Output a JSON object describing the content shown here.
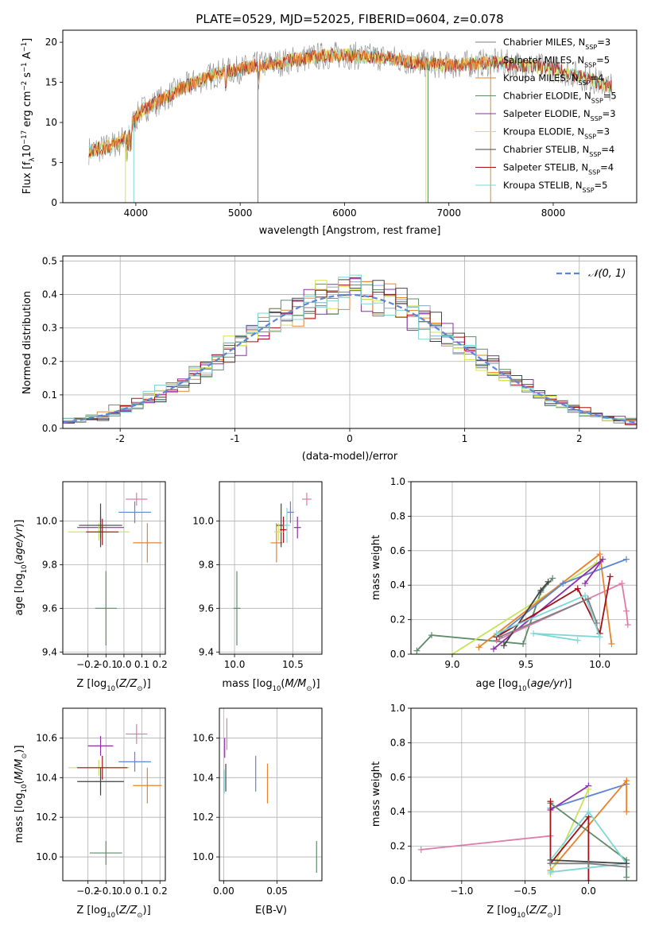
{
  "colors": {
    "ChabrierMILES": "#7f7f7f",
    "SalpeterMILES": "#8aa7c6",
    "KroupaMILES": "#e8822b",
    "ChabrierELODIE": "#5e8c6a",
    "SalpeterELODIE": "#8e2fa8",
    "KroupaELODIE": "#d6e34a",
    "ChabrierSTELIB": "#444444",
    "SalpeterSTELIB": "#a50f15",
    "KroupaSTELIB": "#7fd6d6",
    "Extra": "#5e86d6",
    "Pink": "#e07aa8",
    "Lime": "#c7e35a"
  },
  "chart_data": [
    {
      "id": "spectrum",
      "type": "line",
      "title": "PLATE=0529, MJD=52025, FIBERID=0604, z=0.078",
      "xlabel": "wavelength [Angstrom, rest frame]",
      "ylabel": "Flux [f_λ10^-17 erg cm^-2 s^-1 A^-1]",
      "xlim": [
        3300,
        8800
      ],
      "ylim": [
        0,
        21.5
      ],
      "xticks": [
        4000,
        5000,
        6000,
        7000,
        8000
      ],
      "yticks": [
        0,
        5,
        10,
        15,
        20
      ],
      "legend_position": "right",
      "legend": [
        {
          "label": "Chabrier MILES, N",
          "sub": "SSP",
          "eq": "=3",
          "color": "ChabrierMILES"
        },
        {
          "label": "Salpeter MILES, N",
          "sub": "SSP",
          "eq": "=5",
          "color": "SalpeterMILES"
        },
        {
          "label": "Kroupa MILES, N",
          "sub": "SSP",
          "eq": "=4",
          "color": "KroupaMILES"
        },
        {
          "label": "Chabrier ELODIE, N",
          "sub": "SSP",
          "eq": "=5",
          "color": "ChabrierELODIE"
        },
        {
          "label": "Salpeter ELODIE, N",
          "sub": "SSP",
          "eq": "=3",
          "color": "SalpeterELODIE"
        },
        {
          "label": "Kroupa ELODIE, N",
          "sub": "SSP",
          "eq": "=3",
          "color": "KroupaELODIE"
        },
        {
          "label": "Chabrier STELIB, N",
          "sub": "SSP",
          "eq": "=4",
          "color": "ChabrierSTELIB"
        },
        {
          "label": "Salpeter STELIB, N",
          "sub": "SSP",
          "eq": "=4",
          "color": "SalpeterSTELIB"
        },
        {
          "label": "Kroupa STELIB, N",
          "sub": "SSP",
          "eq": "=5",
          "color": "KroupaSTELIB"
        }
      ],
      "continuum": [
        [
          3550,
          6.5
        ],
        [
          3700,
          6.8
        ],
        [
          3850,
          7.5
        ],
        [
          3950,
          9.5
        ],
        [
          4050,
          11.5
        ],
        [
          4200,
          12.5
        ],
        [
          4400,
          14.0
        ],
        [
          4600,
          15.2
        ],
        [
          4800,
          16.2
        ],
        [
          5000,
          16.6
        ],
        [
          5200,
          17.2
        ],
        [
          5400,
          17.5
        ],
        [
          5600,
          18.0
        ],
        [
          5800,
          18.3
        ],
        [
          6000,
          18.4
        ],
        [
          6200,
          18.2
        ],
        [
          6400,
          18.1
        ],
        [
          6600,
          17.6
        ],
        [
          6800,
          17.3
        ],
        [
          7000,
          17.1
        ],
        [
          7200,
          17.3
        ],
        [
          7400,
          17.5
        ],
        [
          7600,
          17.3
        ],
        [
          7800,
          17.0
        ],
        [
          8000,
          16.7
        ],
        [
          8200,
          16.0
        ],
        [
          8400,
          15.2
        ],
        [
          8550,
          14.4
        ]
      ],
      "drops": [
        {
          "x": 3900,
          "series": "KroupaELODIE"
        },
        {
          "x": 3980,
          "series": "KroupaSTELIB"
        },
        {
          "x": 5170,
          "series": "ChabrierMILES"
        },
        {
          "x": 6780,
          "series": "KroupaELODIE"
        },
        {
          "x": 6800,
          "series": "ChabrierELODIE"
        },
        {
          "x": 7400,
          "series": "KroupaMILES"
        }
      ]
    },
    {
      "id": "residuals",
      "type": "bar",
      "xlabel": "(data-model)/error",
      "ylabel": "Normed distribution",
      "xlim": [
        -2.5,
        2.5
      ],
      "ylim": [
        0,
        0.515
      ],
      "xticks": [
        -2,
        -1,
        0,
        1,
        2
      ],
      "yticks": [
        0.0,
        0.1,
        0.2,
        0.3,
        0.4,
        0.5
      ],
      "grid": true,
      "legend_position": "top-right",
      "legend": [
        {
          "label": "𝒩(0, 1)",
          "color": "Extra",
          "dashed": true
        }
      ],
      "bin_width": 0.1,
      "series": [
        "ChabrierMILES",
        "SalpeterMILES",
        "KroupaMILES",
        "ChabrierELODIE",
        "SalpeterELODIE",
        "KroupaELODIE",
        "ChabrierSTELIB",
        "SalpeterSTELIB",
        "KroupaSTELIB"
      ]
    },
    {
      "id": "age_vs_Z",
      "type": "scatter",
      "xlabel": "Z [log₁₀(Z/Z⊙)]",
      "ylabel": "age  [log₁₀(age/yr)]",
      "xlim": [
        -0.34,
        0.23
      ],
      "ylim": [
        9.39,
        10.18
      ],
      "xticks": [
        -0.2,
        -0.1,
        0.0,
        0.1,
        0.2
      ],
      "xticklabels": [
        "−0.2",
        "−0.1",
        "0.0",
        "0.1",
        "0.2"
      ],
      "yticks": [
        9.4,
        9.6,
        9.8,
        10.0
      ],
      "grid": true,
      "points": [
        {
          "x": -0.1,
          "y": 9.6,
          "xerr": 0.06,
          "yerr": 0.17,
          "color": "ChabrierELODIE"
        },
        {
          "x": 0.13,
          "y": 9.9,
          "xerr": 0.08,
          "yerr": 0.09,
          "color": "KroupaMILES"
        },
        {
          "x": 0.07,
          "y": 10.1,
          "xerr": 0.06,
          "yerr": 0.03,
          "color": "Pink"
        },
        {
          "x": 0.06,
          "y": 10.04,
          "xerr": 0.09,
          "yerr": 0.05,
          "color": "Extra"
        },
        {
          "x": -0.13,
          "y": 9.97,
          "xerr": 0.13,
          "yerr": 0.05,
          "color": "SalpeterELODIE"
        },
        {
          "x": -0.14,
          "y": 9.95,
          "xerr": 0.17,
          "yerr": 0.04,
          "color": "Lime"
        },
        {
          "x": -0.13,
          "y": 9.98,
          "xerr": 0.1,
          "yerr": 0.06,
          "color": "KroupaSTELIB"
        },
        {
          "x": -0.12,
          "y": 9.95,
          "xerr": 0.09,
          "yerr": 0.06,
          "color": "SalpeterSTELIB"
        },
        {
          "x": -0.13,
          "y": 9.98,
          "xerr": 0.12,
          "yerr": 0.1,
          "color": "ChabrierSTELIB"
        }
      ]
    },
    {
      "id": "age_vs_mass",
      "type": "scatter",
      "xlabel": "mass [log₁₀(M/M⊙)]",
      "ylabel": "",
      "xlim": [
        9.87,
        10.75
      ],
      "ylim": [
        9.39,
        10.18
      ],
      "xticks": [
        10.0,
        10.5
      ],
      "xticklabels": [
        "10.0",
        "10.5"
      ],
      "yticks": [
        9.4,
        9.6,
        9.8,
        10.0
      ],
      "grid": true,
      "points": [
        {
          "x": 10.02,
          "y": 9.6,
          "xerr": 0.03,
          "yerr": 0.17,
          "color": "ChabrierELODIE"
        },
        {
          "x": 10.36,
          "y": 9.9,
          "xerr": 0.05,
          "yerr": 0.09,
          "color": "KroupaMILES"
        },
        {
          "x": 10.62,
          "y": 10.1,
          "xerr": 0.04,
          "yerr": 0.03,
          "color": "Pink"
        },
        {
          "x": 10.48,
          "y": 10.04,
          "xerr": 0.03,
          "yerr": 0.05,
          "color": "Extra"
        },
        {
          "x": 10.54,
          "y": 9.97,
          "xerr": 0.03,
          "yerr": 0.05,
          "color": "SalpeterELODIE"
        },
        {
          "x": 10.4,
          "y": 9.98,
          "xerr": 0.04,
          "yerr": 0.1,
          "color": "ChabrierSTELIB"
        },
        {
          "x": 10.42,
          "y": 9.96,
          "xerr": 0.03,
          "yerr": 0.06,
          "color": "SalpeterSTELIB"
        },
        {
          "x": 10.45,
          "y": 9.98,
          "xerr": 0.03,
          "yerr": 0.08,
          "color": "KroupaSTELIB"
        },
        {
          "x": 10.38,
          "y": 9.95,
          "xerr": 0.04,
          "yerr": 0.04,
          "color": "Lime"
        }
      ]
    },
    {
      "id": "weight_vs_age",
      "type": "line",
      "xlabel": "age  [log₁₀(age/yr)]",
      "ylabel": "mass weight",
      "xlim": [
        8.72,
        10.25
      ],
      "ylim": [
        0.0,
        1.0
      ],
      "xticks": [
        9.0,
        9.5,
        10.0
      ],
      "xticklabels": [
        "9.0",
        "9.5",
        "10.0"
      ],
      "yticks": [
        0.0,
        0.2,
        0.4,
        0.6,
        0.8,
        1.0
      ],
      "grid": true,
      "series": [
        {
          "color": "ChabrierELODIE",
          "points": [
            [
              8.76,
              0.02
            ],
            [
              8.86,
              0.11
            ],
            [
              9.48,
              0.06
            ],
            [
              9.6,
              0.36
            ],
            [
              9.68,
              0.44
            ]
          ]
        },
        {
          "color": "Lime",
          "points": [
            [
              9.0,
              0.0
            ],
            [
              9.98,
              0.53
            ]
          ]
        },
        {
          "color": "KroupaMILES",
          "points": [
            [
              9.18,
              0.04
            ],
            [
              10.0,
              0.58
            ],
            [
              10.08,
              0.06
            ]
          ]
        },
        {
          "color": "Extra",
          "points": [
            [
              9.3,
              0.1
            ],
            [
              9.75,
              0.41
            ],
            [
              10.18,
              0.55
            ]
          ]
        },
        {
          "color": "SalpeterELODIE",
          "points": [
            [
              9.28,
              0.03
            ],
            [
              10.02,
              0.55
            ],
            [
              9.9,
              0.41
            ]
          ]
        },
        {
          "color": "Pink",
          "points": [
            [
              9.3,
              0.08
            ],
            [
              10.15,
              0.41
            ],
            [
              10.18,
              0.25
            ],
            [
              10.19,
              0.17
            ]
          ]
        },
        {
          "color": "ChabrierSTELIB",
          "points": [
            [
              9.35,
              0.05
            ],
            [
              9.6,
              0.37
            ],
            [
              9.65,
              0.42
            ]
          ]
        },
        {
          "color": "SalpeterSTELIB",
          "points": [
            [
              9.3,
              0.1
            ],
            [
              9.85,
              0.38
            ],
            [
              10.0,
              0.12
            ],
            [
              10.07,
              0.45
            ]
          ]
        },
        {
          "color": "KroupaSTELIB",
          "points": [
            [
              9.3,
              0.12
            ],
            [
              9.9,
              0.34
            ],
            [
              10.0,
              0.1
            ],
            [
              9.55,
              0.12
            ],
            [
              9.85,
              0.08
            ]
          ]
        },
        {
          "color": "ChabrierMILES",
          "points": [
            [
              9.32,
              0.1
            ],
            [
              9.92,
              0.32
            ],
            [
              9.98,
              0.18
            ]
          ]
        }
      ]
    },
    {
      "id": "mass_vs_Z",
      "type": "scatter",
      "xlabel": "Z [log₁₀(Z/Z⊙)]",
      "ylabel": "mass [log₁₀(M/M⊙)]",
      "xlim": [
        -0.34,
        0.23
      ],
      "ylim": [
        9.88,
        10.75
      ],
      "xticks": [
        -0.2,
        -0.1,
        0.0,
        0.1,
        0.2
      ],
      "xticklabels": [
        "−0.2",
        "−0.1",
        "0.0",
        "0.1",
        "0.2"
      ],
      "yticks": [
        10.0,
        10.2,
        10.4,
        10.6
      ],
      "yticklabels": [
        "10.0",
        "10.2",
        "10.4",
        "10.6"
      ],
      "grid": true,
      "points": [
        {
          "x": -0.1,
          "y": 10.02,
          "xerr": 0.09,
          "yerr": 0.06,
          "color": "ChabrierELODIE"
        },
        {
          "x": 0.13,
          "y": 10.36,
          "xerr": 0.08,
          "yerr": 0.09,
          "color": "KroupaMILES"
        },
        {
          "x": 0.07,
          "y": 10.62,
          "xerr": 0.06,
          "yerr": 0.05,
          "color": "Pink"
        },
        {
          "x": 0.06,
          "y": 10.48,
          "xerr": 0.09,
          "yerr": 0.05,
          "color": "Extra"
        },
        {
          "x": -0.13,
          "y": 10.56,
          "xerr": 0.07,
          "yerr": 0.05,
          "color": "SalpeterELODIE"
        },
        {
          "x": -0.14,
          "y": 10.45,
          "xerr": 0.17,
          "yerr": 0.04,
          "color": "Lime"
        },
        {
          "x": -0.13,
          "y": 10.38,
          "xerr": 0.12,
          "yerr": 0.06,
          "color": "KroupaSTELIB"
        },
        {
          "x": -0.12,
          "y": 10.45,
          "xerr": 0.14,
          "yerr": 0.06,
          "color": "SalpeterSTELIB"
        },
        {
          "x": -0.13,
          "y": 10.38,
          "xerr": 0.13,
          "yerr": 0.07,
          "color": "ChabrierSTELIB"
        }
      ]
    },
    {
      "id": "mass_vs_ebv",
      "type": "scatter",
      "xlabel": "E(B-V)",
      "ylabel": "",
      "xlim": [
        -0.004,
        0.092
      ],
      "ylim": [
        9.88,
        10.75
      ],
      "xticks": [
        0.0,
        0.05
      ],
      "xticklabels": [
        "0.00",
        "0.05"
      ],
      "yticks": [
        10.0,
        10.2,
        10.4,
        10.6
      ],
      "yticklabels": [
        "10.0",
        "10.2",
        "10.4",
        "10.6"
      ],
      "grid": true,
      "points": [
        {
          "x": 0.087,
          "y": 10.0,
          "xerr": 0,
          "yerr": 0.08,
          "color": "ChabrierELODIE"
        },
        {
          "x": 0.03,
          "y": 10.42,
          "xerr": 0,
          "yerr": 0.09,
          "color": "Extra"
        },
        {
          "x": 0.041,
          "y": 10.37,
          "xerr": 0,
          "yerr": 0.1,
          "color": "KroupaMILES"
        },
        {
          "x": 0.003,
          "y": 10.62,
          "xerr": 0,
          "yerr": 0.08,
          "color": "Pink"
        },
        {
          "x": 0.001,
          "y": 10.55,
          "xerr": 0,
          "yerr": 0.05,
          "color": "SalpeterELODIE"
        },
        {
          "x": 0.002,
          "y": 10.4,
          "xerr": 0,
          "yerr": 0.07,
          "color": "ChabrierSTELIB"
        },
        {
          "x": 0.0005,
          "y": 10.38,
          "xerr": 0,
          "yerr": 0.06,
          "color": "KroupaSTELIB"
        }
      ]
    },
    {
      "id": "weight_vs_Z",
      "type": "line",
      "xlabel": "Z [log₁₀(Z/Z⊙)]",
      "ylabel": "mass weight",
      "xlim": [
        -1.4,
        0.38
      ],
      "ylim": [
        0.0,
        1.0
      ],
      "xticks": [
        -1.0,
        -0.5,
        0.0
      ],
      "xticklabels": [
        "−1.0",
        "−0.5",
        "0.0"
      ],
      "yticks": [
        0.0,
        0.2,
        0.4,
        0.6,
        0.8,
        1.0
      ],
      "grid": true,
      "series": [
        {
          "color": "Pink",
          "points": [
            [
              -1.32,
              0.18
            ],
            [
              -0.3,
              0.26
            ]
          ]
        },
        {
          "color": "Extra",
          "points": [
            [
              -0.3,
              0.42
            ],
            [
              0.3,
              0.56
            ]
          ]
        },
        {
          "color": "SalpeterELODIE",
          "points": [
            [
              -0.3,
              0.41
            ],
            [
              0.0,
              0.55
            ]
          ]
        },
        {
          "color": "KroupaMILES",
          "points": [
            [
              -0.3,
              0.06
            ],
            [
              0.3,
              0.58
            ],
            [
              0.3,
              0.4
            ]
          ]
        },
        {
          "color": "Lime",
          "points": [
            [
              -0.3,
              0.04
            ],
            [
              0.0,
              0.53
            ]
          ]
        },
        {
          "color": "ChabrierELODIE",
          "points": [
            [
              -0.3,
              0.45
            ],
            [
              0.3,
              0.12
            ],
            [
              0.3,
              0.02
            ]
          ]
        },
        {
          "color": "SalpeterSTELIB",
          "points": [
            [
              -0.3,
              0.46
            ],
            [
              -0.3,
              0.1
            ],
            [
              0.0,
              0.37
            ],
            [
              0.0,
              0.0
            ]
          ]
        },
        {
          "color": "KroupaSTELIB",
          "points": [
            [
              -0.3,
              0.12
            ],
            [
              0.0,
              0.4
            ],
            [
              0.3,
              0.1
            ],
            [
              -0.3,
              0.05
            ]
          ]
        },
        {
          "color": "ChabrierSTELIB",
          "points": [
            [
              -0.3,
              0.12
            ],
            [
              0.3,
              0.1
            ]
          ]
        },
        {
          "color": "ChabrierMILES",
          "points": [
            [
              -0.3,
              0.1
            ],
            [
              0.0,
              0.1
            ],
            [
              0.3,
              0.08
            ]
          ]
        }
      ]
    }
  ]
}
